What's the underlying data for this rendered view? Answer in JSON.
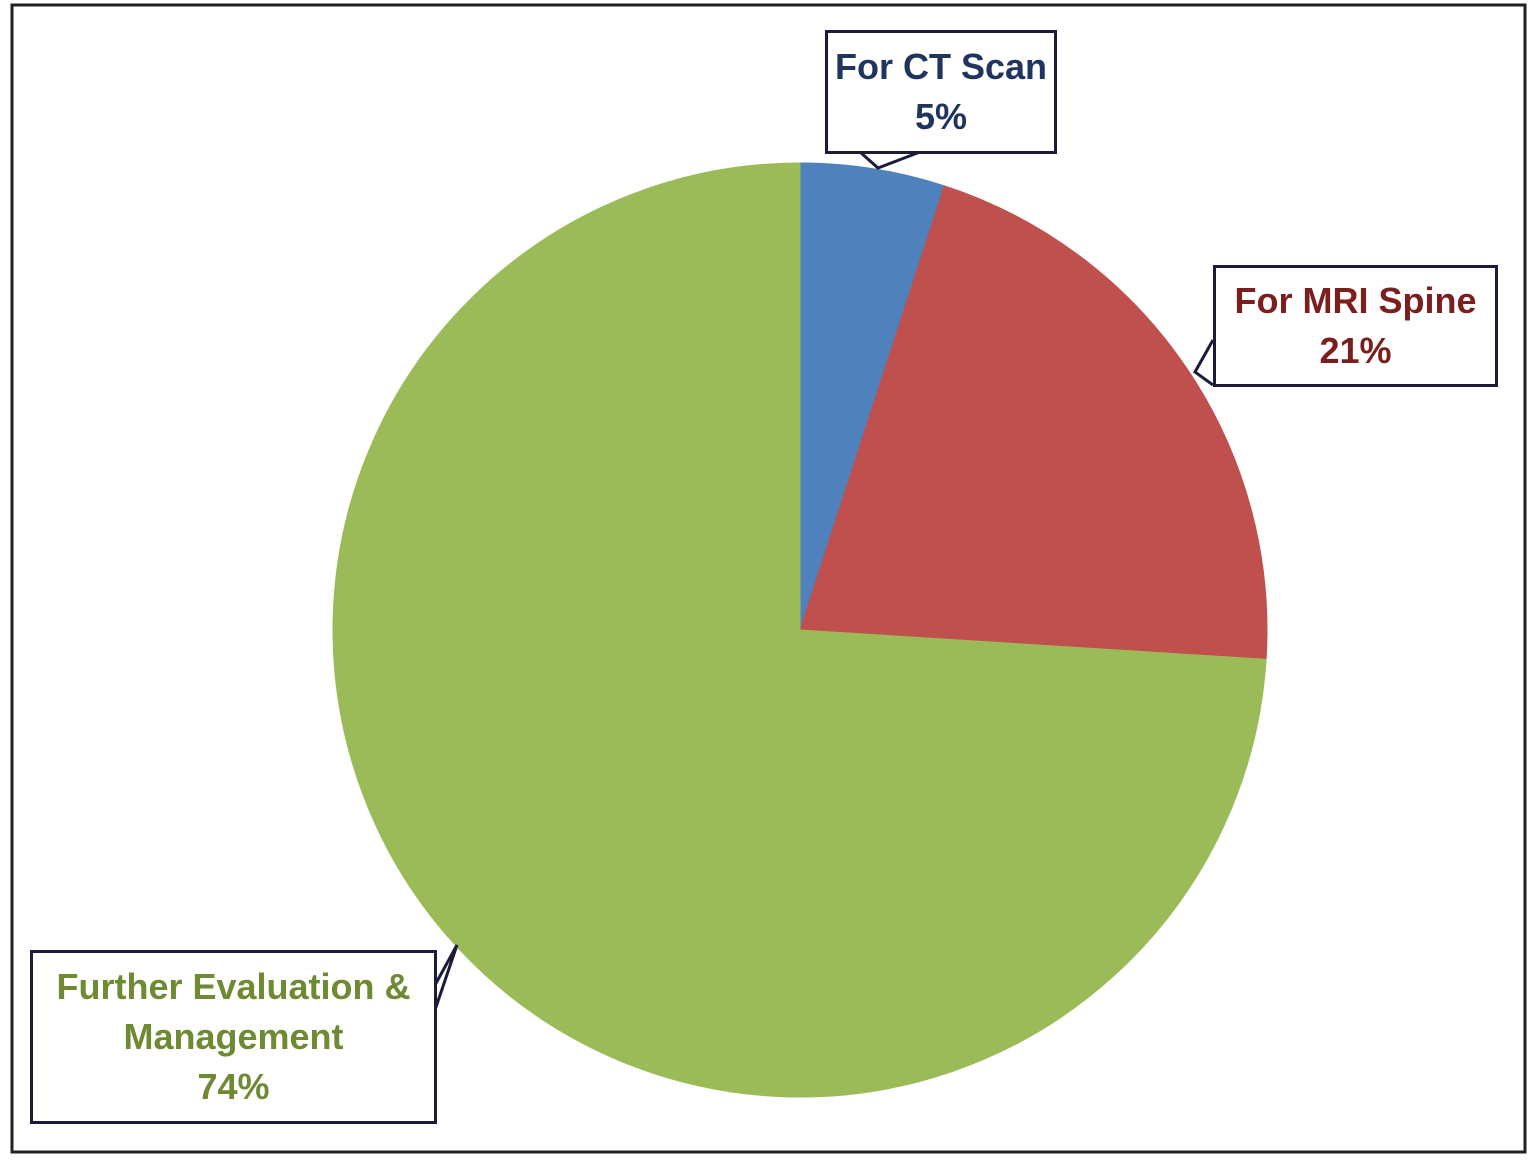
{
  "chart_data": {
    "type": "pie",
    "categories": [
      "For CT Scan",
      "For MRI Spine",
      "Further Evaluation & Management"
    ],
    "values": [
      5,
      21,
      74
    ],
    "value_labels": [
      "5%",
      "21%",
      "74%"
    ],
    "colors": [
      "#4f81bd",
      "#c0504d",
      "#9bbb59"
    ]
  }
}
